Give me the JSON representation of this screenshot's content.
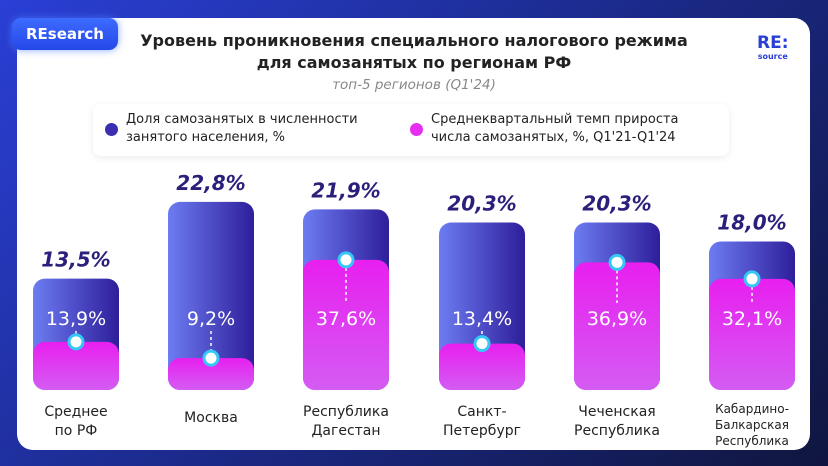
{
  "badge": "REsearch",
  "logo": {
    "line1": "RE:",
    "line2": "source"
  },
  "chart_data": {
    "type": "bar",
    "title": "Уровень проникновения специального налогового режима для самозанятых по регионам РФ",
    "subtitle": "топ-5 регионов (Q1'24)",
    "categories": [
      "Среднее по РФ",
      "Москва",
      "Республика Дагестан",
      "Санкт-Петербург",
      "Чеченская Республика",
      "Кабардино-Балкарская Республика"
    ],
    "category_lines": [
      [
        "Среднее",
        "по РФ"
      ],
      [
        "Москва"
      ],
      [
        "Республика",
        "Дагестан"
      ],
      [
        "Санкт-",
        "Петербург"
      ],
      [
        "Чеченская",
        "Республика"
      ],
      [
        "Кабардино-",
        "Балкарская",
        "Республика"
      ]
    ],
    "series": [
      {
        "name": "Доля самозанятых в численности занятого населения, %",
        "values": [
          13.5,
          22.8,
          21.9,
          20.3,
          20.3,
          18.0
        ],
        "labels": [
          "13,5%",
          "22,8%",
          "21,9%",
          "20,3%",
          "20,3%",
          "18,0%"
        ],
        "color": "#3b2fb0"
      },
      {
        "name": "Среднеквартальный темп прироста числа самозанятых, %, Q1'21-Q1'24",
        "values": [
          13.9,
          9.2,
          37.6,
          13.4,
          36.9,
          32.1
        ],
        "labels": [
          "13,9%",
          "9,2%",
          "37,6%",
          "13,4%",
          "36,9%",
          "32,1%"
        ],
        "color": "#e62ef0"
      }
    ],
    "legend_lines": [
      [
        "Доля самозанятых в численности",
        "занятого населения, %"
      ],
      [
        "Среднеквартальный темп прироста",
        "числа самозанятых, %, Q1'21-Q1'24"
      ]
    ],
    "legend": "top",
    "grid": false
  }
}
